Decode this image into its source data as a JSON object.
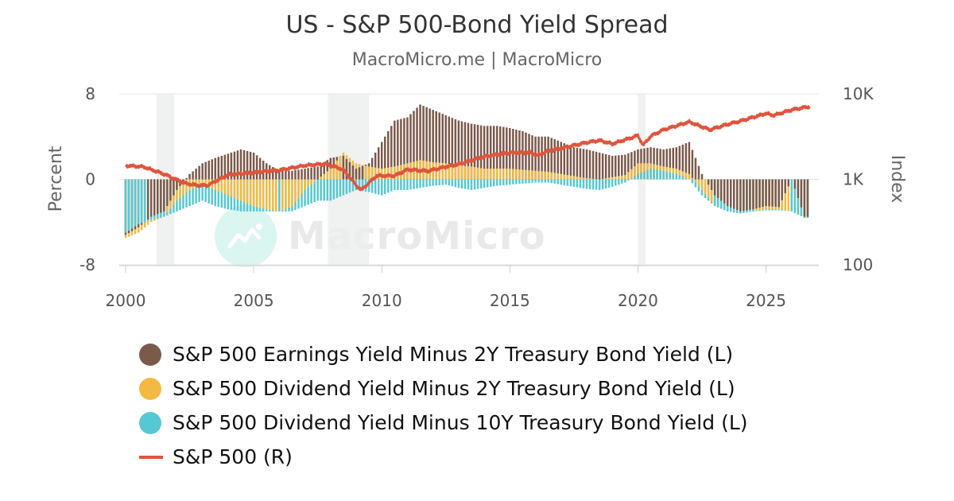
{
  "chart_data": {
    "type": "bar+line",
    "title": "US - S&P 500-Bond Yield Spread",
    "subtitle": "MacroMicro.me | MacroMicro",
    "watermark": "MacroMicro",
    "ylabel_left": "Percent",
    "ylabel_right": "Index",
    "ylim_left": [
      -8,
      8
    ],
    "yticks_left": [
      "8",
      "0",
      "-8"
    ],
    "ylim_right": [
      100,
      10000
    ],
    "right_scale": "log",
    "yticks_right": [
      "10K",
      "1K",
      "100"
    ],
    "xlim": [
      2000,
      2027
    ],
    "xticks": [
      "2000",
      "2005",
      "2010",
      "2015",
      "2020",
      "2025"
    ],
    "grid": "horizontal",
    "legend_position": "bottom",
    "recessions": [
      [
        2001.2,
        2001.9
      ],
      [
        2007.9,
        2009.5
      ],
      [
        2020.0,
        2020.3
      ]
    ],
    "years": [
      2000.0,
      2000.5,
      2001.0,
      2001.5,
      2002.0,
      2002.5,
      2003.0,
      2003.5,
      2004.0,
      2004.5,
      2005.0,
      2005.5,
      2006.0,
      2006.5,
      2007.0,
      2007.5,
      2008.0,
      2008.5,
      2009.0,
      2009.5,
      2010.0,
      2010.5,
      2011.0,
      2011.5,
      2012.0,
      2012.5,
      2013.0,
      2013.5,
      2014.0,
      2014.5,
      2015.0,
      2015.5,
      2016.0,
      2016.5,
      2017.0,
      2017.5,
      2018.0,
      2018.5,
      2019.0,
      2019.5,
      2020.0,
      2020.5,
      2021.0,
      2021.5,
      2022.0,
      2022.5,
      2023.0,
      2023.5,
      2024.0,
      2024.5,
      2025.0,
      2025.5,
      2026.0,
      2026.5
    ],
    "series": [
      {
        "name": "S&P 500 Earnings Yield Minus 2Y Treasury Bond Yield (L)",
        "type": "bar",
        "color": "#7b5a4c",
        "values": [
          -5.2,
          -4.5,
          -3.5,
          -3.0,
          -1.0,
          0.5,
          1.5,
          2.0,
          2.4,
          2.8,
          2.5,
          1.5,
          0.8,
          0.8,
          1.0,
          1.2,
          2.0,
          2.2,
          1.0,
          1.5,
          3.5,
          5.5,
          5.8,
          7.0,
          6.5,
          6.0,
          5.5,
          5.2,
          5.0,
          5.0,
          4.8,
          4.5,
          4.0,
          4.0,
          3.5,
          3.0,
          2.8,
          2.5,
          2.2,
          2.3,
          2.8,
          3.0,
          2.8,
          3.0,
          3.5,
          0.5,
          -1.5,
          -2.5,
          -3.0,
          -2.8,
          -2.5,
          -2.6,
          0.0,
          -3.5
        ]
      },
      {
        "name": "S&P 500 Dividend Yield Minus 2Y Treasury Bond Yield (L)",
        "type": "bar",
        "color": "#f4b942",
        "values": [
          -5.5,
          -5.0,
          -4.0,
          -3.5,
          -2.0,
          -1.0,
          -0.5,
          -1.0,
          -1.5,
          -2.0,
          -2.5,
          -2.8,
          -3.0,
          -2.5,
          -1.0,
          0.0,
          1.0,
          2.5,
          1.5,
          1.2,
          1.0,
          1.2,
          1.5,
          1.8,
          1.6,
          1.5,
          1.3,
          1.2,
          1.0,
          1.0,
          1.0,
          0.9,
          0.8,
          0.7,
          0.5,
          0.3,
          0.1,
          0.0,
          0.2,
          0.4,
          1.5,
          1.5,
          1.2,
          1.0,
          0.5,
          -1.0,
          -2.5,
          -3.0,
          -3.2,
          -3.0,
          -2.8,
          -2.8,
          -3.0,
          -3.6
        ]
      },
      {
        "name": "S&P 500 Dividend Yield Minus 10Y Treasury Bond Yield (L)",
        "type": "bar",
        "color": "#56c8d3",
        "values": [
          -5.0,
          -4.2,
          -3.8,
          -3.5,
          -3.0,
          -2.5,
          -2.0,
          -2.5,
          -2.8,
          -3.0,
          -3.0,
          -3.0,
          -3.0,
          -3.0,
          -2.5,
          -2.0,
          -2.0,
          -1.5,
          -1.0,
          -1.2,
          -1.5,
          -1.0,
          -1.0,
          -0.8,
          -0.6,
          -0.5,
          -0.8,
          -1.0,
          -0.8,
          -0.6,
          -0.5,
          -0.4,
          -0.3,
          -0.3,
          -0.5,
          -0.7,
          -0.9,
          -1.0,
          -0.7,
          -0.3,
          0.5,
          1.0,
          0.8,
          0.5,
          0.0,
          -1.5,
          -2.5,
          -3.0,
          -3.2,
          -3.0,
          -2.9,
          -2.9,
          -3.0,
          -3.6
        ]
      },
      {
        "name": "S&P 500 (R)",
        "type": "line",
        "color": "#e0543c",
        "axis": "right",
        "x": [
          2000.0,
          2000.7,
          2001.5,
          2002.3,
          2002.8,
          2003.2,
          2004.0,
          2005.0,
          2006.0,
          2007.0,
          2007.8,
          2008.5,
          2009.0,
          2009.2,
          2009.8,
          2010.5,
          2011.0,
          2011.8,
          2012.5,
          2013.0,
          2014.0,
          2015.0,
          2015.8,
          2016.1,
          2016.5,
          2017.0,
          2018.0,
          2018.5,
          2019.0,
          2019.8,
          2020.0,
          2020.2,
          2020.5,
          2021.0,
          2022.0,
          2022.8,
          2023.5,
          2024.0,
          2025.0,
          2025.3,
          2026.0,
          2026.7
        ],
        "values": [
          1450,
          1400,
          1150,
          900,
          850,
          850,
          1130,
          1200,
          1280,
          1450,
          1520,
          1300,
          850,
          750,
          1100,
          1100,
          1300,
          1250,
          1400,
          1500,
          1850,
          2050,
          2050,
          1900,
          2150,
          2300,
          2700,
          2850,
          2600,
          3100,
          3250,
          2500,
          3200,
          3800,
          4700,
          3800,
          4400,
          4800,
          5900,
          5600,
          6500,
          7100
        ]
      }
    ]
  }
}
